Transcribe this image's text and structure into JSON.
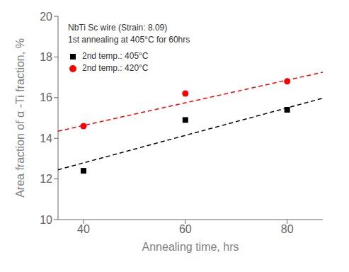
{
  "chart_data": {
    "type": "scatter",
    "annotations": [
      "NbTi Sc wire (Strain: 8.09)",
      "1st annealing at 405°C for 60hrs"
    ],
    "xlabel": "Annealing time, hrs",
    "ylabel": "Area fraction of α -Ti fraction, %",
    "xlim": [
      35,
      87
    ],
    "ylim": [
      10,
      20
    ],
    "xticks": [
      40,
      60,
      80
    ],
    "yticks": [
      10,
      12,
      14,
      16,
      18,
      20
    ],
    "legend": "upper left",
    "series": [
      {
        "type": "line",
        "line_style": "dashed",
        "color": "black",
        "x": [
          35,
          87
        ],
        "values": [
          12.45,
          15.97
        ]
      },
      {
        "type": "line",
        "line_style": "dashed",
        "color": "red",
        "x": [
          35,
          87
        ],
        "values": [
          14.35,
          17.25
        ]
      },
      {
        "name": "2nd temp.: 405°C",
        "color": "black",
        "marker": "square",
        "x": [
          40,
          60,
          80
        ],
        "values": [
          12.4,
          14.9,
          15.4
        ]
      },
      {
        "name": "2nd temp.: 420°C",
        "color": "red",
        "marker": "circle",
        "x": [
          40,
          60,
          80
        ],
        "values": [
          14.6,
          16.2,
          16.8
        ]
      }
    ]
  }
}
